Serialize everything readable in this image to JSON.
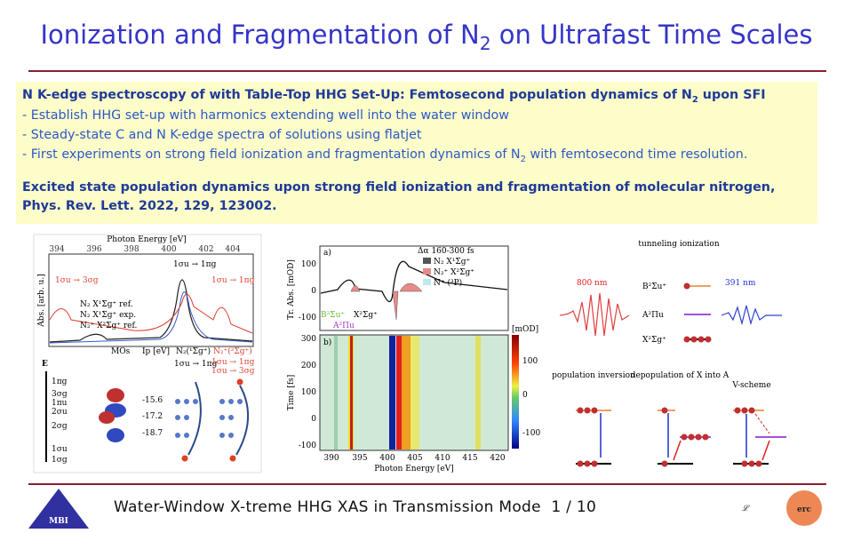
{
  "header": {
    "title": {
      "before": "Ionization and Fragmentation of N",
      "sub": "2",
      "after": " on Ultrafast Time Scales"
    }
  },
  "summary": {
    "heading": {
      "before": "N K-edge spectroscopy of with Table-Top HHG Set-Up: Femtosecond population dynamics of N",
      "sub": "2",
      "after": " upon SFI"
    },
    "bullets": [
      {
        "before": "- Establish HHG set-up with harmonics extending well into the water window"
      },
      {
        "before": "- Steady-state C and N K-edge spectra of solutions using flatjet"
      },
      {
        "before": "- First experiments on strong field ionization and fragmentation dynamics of N",
        "sub": "2",
        "after": " with femtosecond time resolution."
      }
    ],
    "citation": [
      "Excited state population dynamics upon strong field ionization and fragmentation of molecular nitrogen,",
      "Phys. Rev. Lett. 2022, 129, 123002."
    ]
  },
  "figures": {
    "left": {
      "axis_title": "Photon Energy [eV]",
      "ticks": [
        "394",
        "396",
        "398",
        "400",
        "402",
        "404"
      ],
      "y_label": "Abs. [arb. u.]",
      "peaks": [
        "1σu → 3σg",
        "1σu → 1πg",
        "1σu → 1πg"
      ],
      "legend": [
        "N₂ X¹Σg⁺ ref.",
        "N₂ X¹Σg⁺ exp.",
        "N₂⁺ X²Σg⁺ ref."
      ],
      "columns": [
        "MOs",
        "Ip [eV]",
        "N₂(¹Σg⁺)",
        "N₂⁺(²Σg⁺)"
      ],
      "energy_axis": "E",
      "orbitals": [
        "1πg",
        "3σg",
        "1πu",
        "2σu",
        "2σg",
        "1σu",
        "1σg"
      ],
      "ip": [
        "-15.6",
        "-17.2",
        "-18.7"
      ],
      "transitions": [
        "1σu → 1πg",
        "1σu → 1πg",
        "1σu → 3σg"
      ]
    },
    "middle": {
      "panels": [
        "a)",
        "b)"
      ],
      "legend": [
        "Δα 160-300 fs",
        "N₂ X¹Σg⁺",
        "N₂⁺ X²Σg⁺",
        "N⁺ (³P)"
      ],
      "top_ticks": [
        "100",
        "0",
        "-100"
      ],
      "top_y_label": "Tr. Abs. [mOD]",
      "state_labels": [
        "B²Σu⁺",
        "X²Σg⁺",
        "A²Πu"
      ],
      "time_ticks": [
        "300",
        "200",
        "100",
        "0",
        "-100"
      ],
      "time_label": "Time [fs]",
      "x_ticks": [
        "390",
        "395",
        "400",
        "405",
        "410",
        "415",
        "420"
      ],
      "x_label": "Photon Energy [eV]",
      "colorbar_title": "[mOD]",
      "colorbar_ticks": [
        "100",
        "0",
        "-100"
      ]
    },
    "right": {
      "title": "tunneling ionization",
      "wavelengths": [
        "800 nm",
        "391 nm"
      ],
      "states": [
        "B²Σu⁺",
        "A²Πu",
        "X²Σg⁺"
      ],
      "schemes": [
        "population inversion",
        "depopulation of X into A",
        "V-scheme"
      ]
    }
  },
  "footer": {
    "logo": "MBI",
    "text": "Water-Window X-treme HHG XAS in Transmission Mode",
    "page": "1 / 10",
    "logo_right": "erc"
  }
}
